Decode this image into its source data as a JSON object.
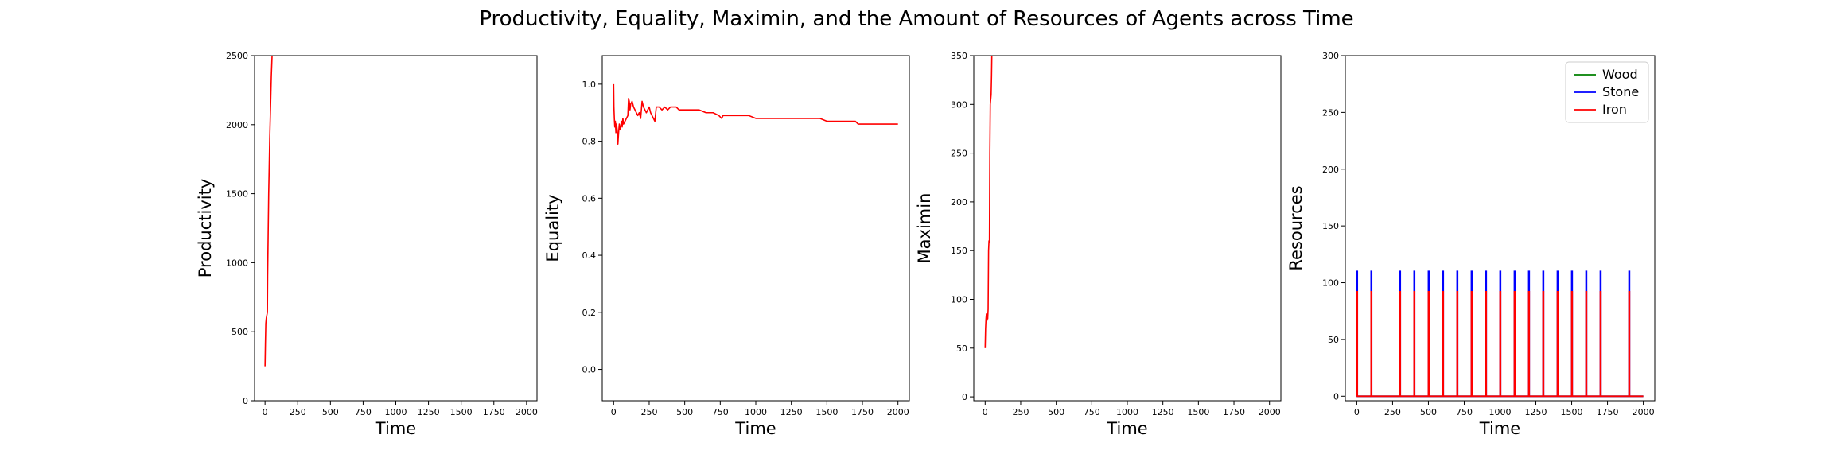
{
  "figure": {
    "title": "Productivity, Equality, Maximin, and the Amount of Resources of Agents across Time"
  },
  "chart_data": [
    {
      "type": "line",
      "title": "",
      "xlabel": "Time",
      "ylabel": "Productivity",
      "xlim": [
        -80,
        2080
      ],
      "ylim": [
        0,
        2500
      ],
      "xticks": [
        0,
        250,
        500,
        750,
        1000,
        1250,
        1500,
        1750,
        2000
      ],
      "yticks": [
        0,
        500,
        1000,
        1500,
        2000,
        2500
      ],
      "grid": false,
      "legend": null,
      "series": [
        {
          "color": "#ff0000",
          "x": [
            0,
            3,
            6,
            10,
            14,
            18,
            20,
            24,
            28,
            32,
            36,
            40,
            44,
            48,
            52,
            56
          ],
          "y": [
            250,
            420,
            560,
            600,
            620,
            640,
            900,
            1200,
            1500,
            1700,
            1900,
            2050,
            2200,
            2350,
            2450,
            2550
          ]
        }
      ]
    },
    {
      "type": "line",
      "title": "",
      "xlabel": "Time",
      "ylabel": "Equality",
      "xlim": [
        -80,
        2080
      ],
      "ylim": [
        -0.11,
        1.1
      ],
      "xticks": [
        0,
        250,
        500,
        750,
        1000,
        1250,
        1500,
        1750,
        2000
      ],
      "yticks": [
        0.0,
        0.2,
        0.4,
        0.6,
        0.8,
        1.0
      ],
      "ytick_labels": [
        "0.0",
        "0.2",
        "0.4",
        "0.6",
        "0.8",
        "1.0"
      ],
      "grid": false,
      "legend": null,
      "series": [
        {
          "color": "#ff0000",
          "x": [
            0,
            2,
            5,
            8,
            12,
            16,
            20,
            25,
            30,
            35,
            40,
            45,
            50,
            55,
            60,
            65,
            70,
            80,
            90,
            100,
            105,
            110,
            115,
            120,
            130,
            140,
            150,
            160,
            170,
            180,
            190,
            200,
            210,
            220,
            230,
            240,
            250,
            260,
            270,
            280,
            290,
            300,
            320,
            340,
            360,
            380,
            400,
            420,
            440,
            460,
            480,
            500,
            550,
            600,
            650,
            700,
            740,
            760,
            770,
            780,
            800,
            850,
            900,
            950,
            1000,
            1100,
            1200,
            1300,
            1400,
            1450,
            1500,
            1520,
            1550,
            1600,
            1650,
            1700,
            1720,
            1750,
            1800,
            1850,
            1900,
            1950,
            2000
          ],
          "y": [
            1.0,
            0.92,
            0.88,
            0.85,
            0.87,
            0.83,
            0.86,
            0.84,
            0.79,
            0.83,
            0.86,
            0.84,
            0.85,
            0.87,
            0.85,
            0.88,
            0.86,
            0.87,
            0.88,
            0.89,
            0.95,
            0.94,
            0.91,
            0.93,
            0.94,
            0.92,
            0.91,
            0.9,
            0.89,
            0.9,
            0.88,
            0.94,
            0.92,
            0.91,
            0.9,
            0.91,
            0.92,
            0.9,
            0.89,
            0.88,
            0.87,
            0.92,
            0.92,
            0.91,
            0.92,
            0.91,
            0.92,
            0.92,
            0.92,
            0.91,
            0.91,
            0.91,
            0.91,
            0.91,
            0.9,
            0.9,
            0.89,
            0.88,
            0.89,
            0.89,
            0.89,
            0.89,
            0.89,
            0.89,
            0.88,
            0.88,
            0.88,
            0.88,
            0.88,
            0.88,
            0.87,
            0.87,
            0.87,
            0.87,
            0.87,
            0.87,
            0.86,
            0.86,
            0.86,
            0.86,
            0.86,
            0.86,
            0.86
          ]
        }
      ]
    },
    {
      "type": "line",
      "title": "",
      "xlabel": "Time",
      "ylabel": "Maximin",
      "xlim": [
        -80,
        2080
      ],
      "ylim": [
        -4,
        350
      ],
      "xticks": [
        0,
        250,
        500,
        750,
        1000,
        1250,
        1500,
        1750,
        2000
      ],
      "yticks": [
        0,
        50,
        100,
        150,
        200,
        250,
        300,
        350
      ],
      "grid": false,
      "legend": null,
      "series": [
        {
          "color": "#ff0000",
          "x": [
            0,
            3,
            6,
            9,
            12,
            15,
            18,
            21,
            24,
            27,
            30,
            33,
            36,
            39,
            42,
            45,
            48
          ],
          "y": [
            50,
            70,
            80,
            85,
            78,
            82,
            80,
            90,
            150,
            160,
            158,
            250,
            300,
            305,
            310,
            330,
            360
          ]
        }
      ]
    },
    {
      "type": "line",
      "title": "",
      "xlabel": "Time",
      "ylabel": "Resources",
      "xlim": [
        -80,
        2080
      ],
      "ylim": [
        -4,
        300
      ],
      "xticks": [
        0,
        250,
        500,
        750,
        1000,
        1250,
        1500,
        1750,
        2000
      ],
      "yticks": [
        0,
        50,
        100,
        150,
        200,
        250,
        300
      ],
      "grid": false,
      "legend": {
        "placement": "top-right",
        "entries": [
          "Wood",
          "Stone",
          "Iron"
        ]
      },
      "series": [
        {
          "name": "Wood",
          "color": "#008000",
          "base": 0,
          "spike_times": [],
          "spike_value": 0
        },
        {
          "name": "Stone",
          "color": "#0000ff",
          "base": 0,
          "spike_times": [
            0,
            100,
            300,
            400,
            500,
            600,
            700,
            800,
            900,
            1000,
            1100,
            1200,
            1300,
            1400,
            1500,
            1600,
            1700,
            1900
          ],
          "spike_value": 110
        },
        {
          "name": "Iron",
          "color": "#ff0000",
          "base": 0,
          "spike_times": [
            0,
            100,
            300,
            400,
            500,
            600,
            700,
            800,
            900,
            1000,
            1100,
            1200,
            1300,
            1400,
            1500,
            1600,
            1700,
            1900
          ],
          "spike_value": 92
        }
      ]
    }
  ]
}
